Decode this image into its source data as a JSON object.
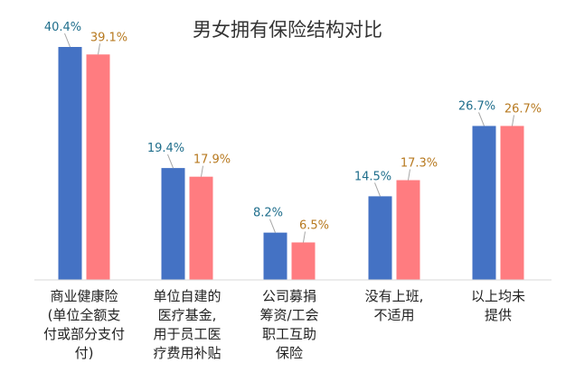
{
  "chart_data": {
    "type": "bar",
    "title": "男女拥有保险结构对比",
    "categories": [
      [
        "商业健康险",
        "(单位全额支",
        "付或部分支付",
        "付)"
      ],
      [
        "单位自建的",
        "医疗基金,",
        "用于员工医",
        "疗费用补贴"
      ],
      [
        "公司募捐",
        "筹资/工会",
        "职工互助",
        "保险"
      ],
      [
        "没有上班,",
        "不适用"
      ],
      [
        "以上均未",
        "提供"
      ]
    ],
    "series": [
      {
        "values": [
          40.4,
          19.4,
          8.2,
          14.5,
          26.7
        ],
        "labels": [
          "40.4%",
          "19.4%",
          "8.2%",
          "14.5%",
          "26.7%"
        ],
        "color": "#4472C4",
        "label_color": "#1F6E8C"
      },
      {
        "values": [
          39.1,
          17.9,
          6.5,
          17.3,
          26.7
        ],
        "labels": [
          "39.1%",
          "17.9%",
          "6.5%",
          "17.3%",
          "26.7%"
        ],
        "color": "#FF7C80",
        "label_color": "#B7791F"
      }
    ],
    "ylim": [
      0,
      40.4
    ],
    "grid": false,
    "legend": "none"
  }
}
